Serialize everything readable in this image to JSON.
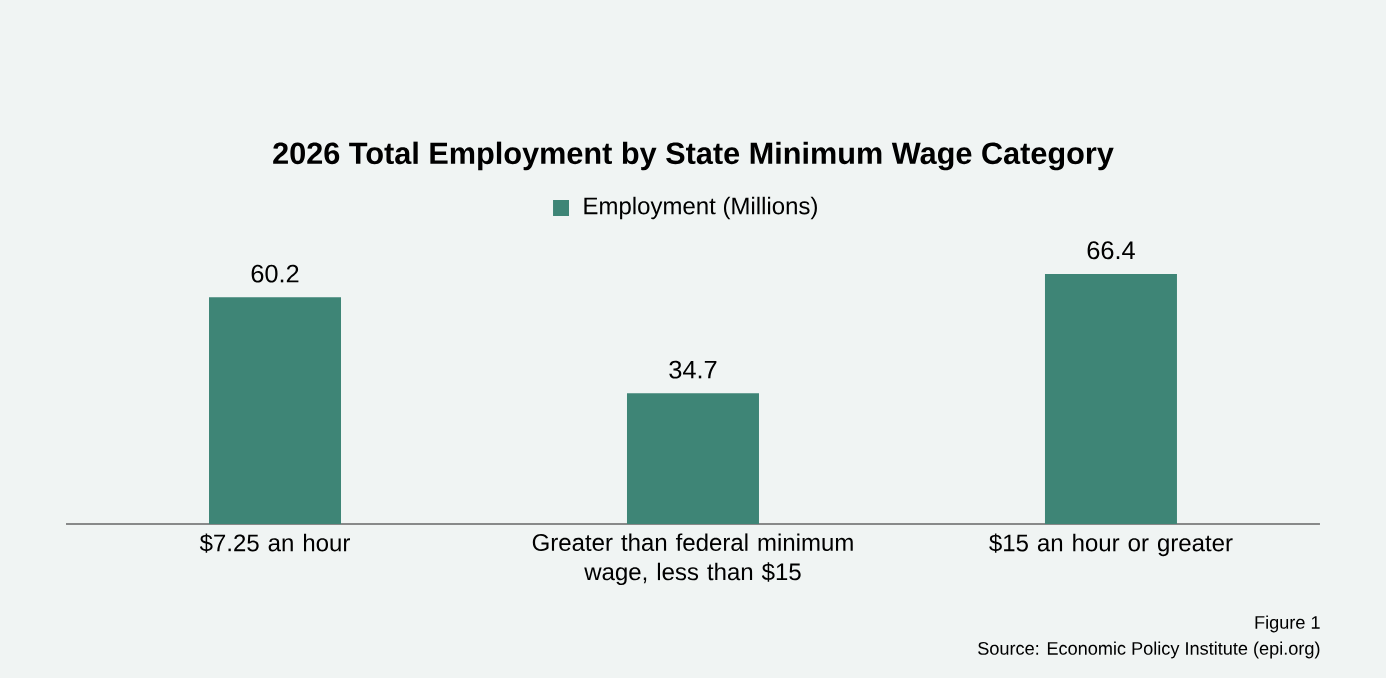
{
  "chart_data": {
    "type": "bar",
    "title": "2026 Total Employment by State Minimum Wage Category",
    "categories": [
      "$7.25 an hour",
      "Greater than federal minimum wage, less than $15",
      "$15 an hour or greater"
    ],
    "series": [
      {
        "name": "Employment (Millions)",
        "color": "#3e8576",
        "values": [
          60.2,
          34.7,
          66.4
        ]
      }
    ],
    "data_labels": true,
    "legend": "top",
    "annotations": [
      "Figure 1",
      "Source: Economic Policy Institute (epi.org)"
    ]
  }
}
